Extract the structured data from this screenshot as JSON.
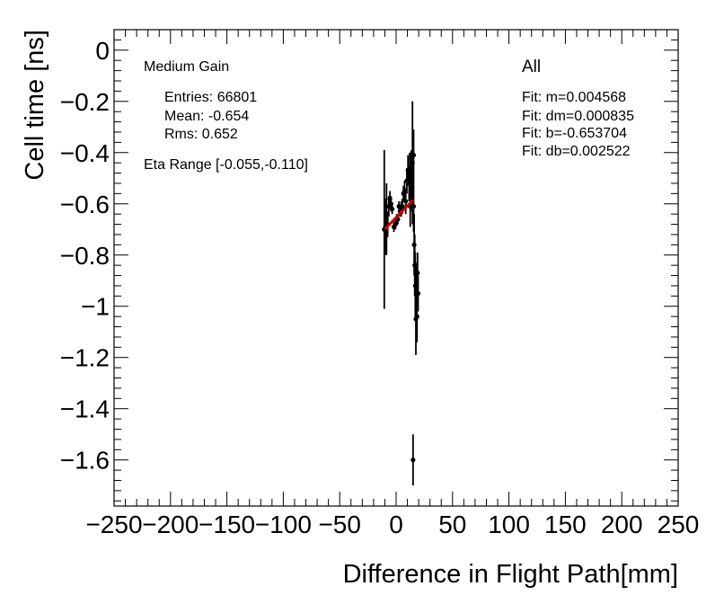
{
  "chart_data": {
    "type": "scatter",
    "xlabel": "Difference in Flight Path[mm]",
    "ylabel": "Cell time [ns]",
    "xlim": [
      -250,
      250
    ],
    "ylim": [
      -1.78,
      0.08
    ],
    "xticks": [
      -250,
      -200,
      -150,
      -100,
      -50,
      0,
      50,
      100,
      150,
      200,
      250
    ],
    "yticks": [
      0,
      -0.2,
      -0.4,
      -0.6,
      -0.8,
      -1,
      -1.2,
      -1.4,
      -1.6
    ],
    "xtick_labels": [
      "−250",
      "−200",
      "−150",
      "−100",
      "−50",
      "0",
      "50",
      "100",
      "150",
      "200",
      "250"
    ],
    "ytick_labels": [
      "0",
      "−0.2",
      "−0.4",
      "−0.6",
      "−0.8",
      "−1",
      "−1.2",
      "−1.4",
      "−1.6"
    ],
    "grid": false,
    "series": [
      {
        "points": [
          {
            "x": -10.5,
            "y": -0.7,
            "err": 0.31
          },
          {
            "x": -9.5,
            "y": -0.69,
            "err": 0.11
          },
          {
            "x": -8.5,
            "y": -0.66,
            "err": 0.14
          },
          {
            "x": -7.5,
            "y": -0.68,
            "err": 0.05
          },
          {
            "x": -6.5,
            "y": -0.61,
            "err": 0.04
          },
          {
            "x": -5.5,
            "y": -0.58,
            "err": 0.03
          },
          {
            "x": -4.5,
            "y": -0.6,
            "err": 0.03
          },
          {
            "x": -3.5,
            "y": -0.62,
            "err": 0.02
          },
          {
            "x": -2.0,
            "y": -0.69,
            "err": 0.02
          },
          {
            "x": -0.5,
            "y": -0.68,
            "err": 0.02
          },
          {
            "x": 0.5,
            "y": -0.66,
            "err": 0.02
          },
          {
            "x": 1.5,
            "y": -0.66,
            "err": 0.02
          },
          {
            "x": 2.5,
            "y": -0.61,
            "err": 0.02
          },
          {
            "x": 3.5,
            "y": -0.63,
            "err": 0.02
          },
          {
            "x": 4.5,
            "y": -0.62,
            "err": 0.03
          },
          {
            "x": 5.5,
            "y": -0.61,
            "err": 0.03
          },
          {
            "x": 6.5,
            "y": -0.56,
            "err": 0.03
          },
          {
            "x": 7.5,
            "y": -0.55,
            "err": 0.04
          },
          {
            "x": 8.5,
            "y": -0.59,
            "err": 0.05
          },
          {
            "x": 9.5,
            "y": -0.51,
            "err": 0.05
          },
          {
            "x": 10.5,
            "y": -0.47,
            "err": 0.06
          },
          {
            "x": 11.5,
            "y": -0.52,
            "err": 0.07
          },
          {
            "x": 12.0,
            "y": -0.47,
            "err": 0.07
          },
          {
            "x": 12.5,
            "y": -0.61,
            "err": 0.08
          },
          {
            "x": 13.0,
            "y": -0.55,
            "err": 0.08
          },
          {
            "x": 13.5,
            "y": -0.49,
            "err": 0.1
          },
          {
            "x": 14.5,
            "y": -0.44,
            "err": 0.24
          },
          {
            "x": 15.5,
            "y": -0.41,
            "err": 0.1
          },
          {
            "x": 15.5,
            "y": -0.61,
            "err": 0.1
          },
          {
            "x": 16.0,
            "y": -0.76,
            "err": 0.12
          },
          {
            "x": 16.5,
            "y": -0.84,
            "err": 0.12
          },
          {
            "x": 17.0,
            "y": -0.92,
            "err": 0.13
          },
          {
            "x": 17.5,
            "y": -1.05,
            "err": 0.14
          },
          {
            "x": 18.0,
            "y": -0.95,
            "err": 0.12
          },
          {
            "x": 18.5,
            "y": -1.04,
            "err": 0.1
          },
          {
            "x": 19.0,
            "y": -0.87,
            "err": 0.08
          },
          {
            "x": 19.5,
            "y": -0.95,
            "err": 0.07
          },
          {
            "x": 15.0,
            "y": -1.6,
            "err": 0.1
          }
        ]
      }
    ],
    "fit_line": {
      "x": [
        -10,
        15
      ],
      "y": [
        -0.699,
        -0.585
      ],
      "color": "#cc0000"
    },
    "annotations_left": {
      "title": "Medium Gain",
      "entries": "Entries: 66801",
      "mean": "Mean: -0.654",
      "rms": "Rms: 0.652",
      "eta": "Eta Range [-0.055,-0.110]"
    },
    "annotations_right": {
      "title": "All",
      "fit_m": "Fit: m=0.004568",
      "fit_dm": "Fit: dm=0.000835",
      "fit_b": "Fit: b=-0.653704",
      "fit_db": "Fit: db=0.002522"
    }
  }
}
